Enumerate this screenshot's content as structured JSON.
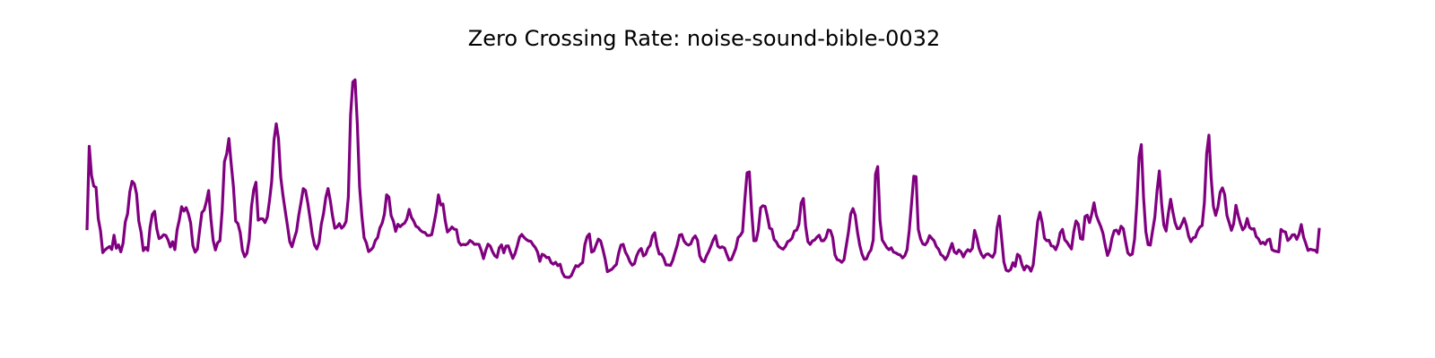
{
  "chart_data": {
    "type": "line",
    "title": "Zero Crossing Rate: noise-sound-bible-0032",
    "xlabel": "",
    "ylabel": "",
    "axes_visible": false,
    "grid": false,
    "ylim": [
      0.0,
      1.0
    ],
    "series": [
      {
        "color": "#800080",
        "values": [
          0.344,
          0.691,
          0.571,
          0.526,
          0.521,
          0.392,
          0.341,
          0.251,
          0.262,
          0.27,
          0.276,
          0.264,
          0.323,
          0.269,
          0.283,
          0.254,
          0.289,
          0.378,
          0.411,
          0.502,
          0.546,
          0.536,
          0.494,
          0.381,
          0.335,
          0.259,
          0.272,
          0.26,
          0.356,
          0.409,
          0.422,
          0.348,
          0.309,
          0.314,
          0.325,
          0.322,
          0.303,
          0.274,
          0.296,
          0.263,
          0.345,
          0.387,
          0.441,
          0.423,
          0.437,
          0.412,
          0.374,
          0.28,
          0.253,
          0.265,
          0.343,
          0.417,
          0.427,
          0.462,
          0.508,
          0.392,
          0.302,
          0.262,
          0.292,
          0.3,
          0.425,
          0.627,
          0.659,
          0.723,
          0.619,
          0.524,
          0.381,
          0.371,
          0.334,
          0.26,
          0.234,
          0.248,
          0.305,
          0.44,
          0.511,
          0.542,
          0.385,
          0.391,
          0.391,
          0.375,
          0.397,
          0.465,
          0.546,
          0.715,
          0.784,
          0.723,
          0.563,
          0.487,
          0.423,
          0.361,
          0.296,
          0.275,
          0.309,
          0.339,
          0.405,
          0.459,
          0.516,
          0.508,
          0.457,
          0.394,
          0.326,
          0.282,
          0.266,
          0.292,
          0.368,
          0.413,
          0.479,
          0.516,
          0.466,
          0.402,
          0.352,
          0.357,
          0.371,
          0.352,
          0.361,
          0.38,
          0.48,
          0.82,
          0.957,
          0.966,
          0.782,
          0.523,
          0.403,
          0.313,
          0.291,
          0.255,
          0.262,
          0.273,
          0.301,
          0.313,
          0.353,
          0.372,
          0.409,
          0.49,
          0.481,
          0.404,
          0.381,
          0.339,
          0.368,
          0.358,
          0.367,
          0.373,
          0.391,
          0.43,
          0.397,
          0.382,
          0.36,
          0.355,
          0.343,
          0.336,
          0.334,
          0.322,
          0.322,
          0.325,
          0.37,
          0.42,
          0.49,
          0.448,
          0.452,
          0.384,
          0.336,
          0.345,
          0.357,
          0.348,
          0.346,
          0.295,
          0.282,
          0.285,
          0.283,
          0.288,
          0.301,
          0.295,
          0.285,
          0.286,
          0.285,
          0.26,
          0.226,
          0.26,
          0.286,
          0.278,
          0.255,
          0.238,
          0.231,
          0.271,
          0.283,
          0.25,
          0.278,
          0.279,
          0.252,
          0.227,
          0.247,
          0.279,
          0.315,
          0.326,
          0.314,
          0.305,
          0.299,
          0.298,
          0.283,
          0.272,
          0.253,
          0.215,
          0.244,
          0.24,
          0.23,
          0.231,
          0.21,
          0.203,
          0.211,
          0.197,
          0.203,
          0.168,
          0.151,
          0.149,
          0.148,
          0.156,
          0.178,
          0.197,
          0.193,
          0.203,
          0.21,
          0.284,
          0.317,
          0.328,
          0.253,
          0.258,
          0.283,
          0.307,
          0.299,
          0.264,
          0.224,
          0.172,
          0.177,
          0.182,
          0.193,
          0.202,
          0.249,
          0.282,
          0.285,
          0.253,
          0.236,
          0.213,
          0.199,
          0.205,
          0.238,
          0.258,
          0.268,
          0.237,
          0.244,
          0.269,
          0.281,
          0.32,
          0.333,
          0.279,
          0.245,
          0.245,
          0.228,
          0.2,
          0.2,
          0.198,
          0.219,
          0.251,
          0.282,
          0.323,
          0.326,
          0.299,
          0.287,
          0.282,
          0.287,
          0.31,
          0.32,
          0.302,
          0.237,
          0.218,
          0.213,
          0.238,
          0.256,
          0.279,
          0.304,
          0.321,
          0.278,
          0.271,
          0.275,
          0.27,
          0.244,
          0.22,
          0.222,
          0.245,
          0.269,
          0.313,
          0.322,
          0.337,
          0.47,
          0.581,
          0.585,
          0.426,
          0.3,
          0.301,
          0.344,
          0.436,
          0.445,
          0.442,
          0.401,
          0.352,
          0.348,
          0.305,
          0.295,
          0.277,
          0.27,
          0.265,
          0.276,
          0.296,
          0.301,
          0.311,
          0.34,
          0.344,
          0.368,
          0.456,
          0.475,
          0.36,
          0.296,
          0.285,
          0.299,
          0.303,
          0.315,
          0.323,
          0.3,
          0.3,
          0.313,
          0.345,
          0.342,
          0.314,
          0.242,
          0.222,
          0.219,
          0.211,
          0.221,
          0.278,
          0.336,
          0.411,
          0.433,
          0.406,
          0.336,
          0.282,
          0.245,
          0.223,
          0.225,
          0.248,
          0.262,
          0.303,
          0.575,
          0.607,
          0.384,
          0.303,
          0.288,
          0.272,
          0.263,
          0.271,
          0.253,
          0.25,
          0.244,
          0.241,
          0.229,
          0.238,
          0.262,
          0.344,
          0.454,
          0.567,
          0.565,
          0.347,
          0.308,
          0.287,
          0.283,
          0.295,
          0.321,
          0.31,
          0.3,
          0.276,
          0.265,
          0.243,
          0.236,
          0.222,
          0.237,
          0.264,
          0.289,
          0.254,
          0.247,
          0.262,
          0.253,
          0.233,
          0.252,
          0.263,
          0.256,
          0.269,
          0.343,
          0.311,
          0.268,
          0.244,
          0.23,
          0.243,
          0.246,
          0.238,
          0.232,
          0.251,
          0.355,
          0.402,
          0.309,
          0.212,
          0.178,
          0.174,
          0.181,
          0.209,
          0.194,
          0.244,
          0.237,
          0.201,
          0.179,
          0.196,
          0.191,
          0.174,
          0.2,
          0.288,
          0.38,
          0.418,
          0.374,
          0.311,
          0.3,
          0.302,
          0.279,
          0.277,
          0.263,
          0.287,
          0.333,
          0.347,
          0.304,
          0.294,
          0.279,
          0.266,
          0.337,
          0.382,
          0.369,
          0.309,
          0.306,
          0.4,
          0.406,
          0.375,
          0.411,
          0.457,
          0.406,
          0.381,
          0.359,
          0.33,
          0.281,
          0.239,
          0.263,
          0.312,
          0.342,
          0.344,
          0.328,
          0.36,
          0.35,
          0.298,
          0.25,
          0.24,
          0.245,
          0.307,
          0.454,
          0.646,
          0.698,
          0.479,
          0.338,
          0.284,
          0.282,
          0.341,
          0.398,
          0.508,
          0.589,
          0.455,
          0.364,
          0.34,
          0.413,
          0.472,
          0.419,
          0.374,
          0.35,
          0.351,
          0.37,
          0.393,
          0.363,
          0.319,
          0.296,
          0.312,
          0.315,
          0.342,
          0.357,
          0.363,
          0.459,
          0.661,
          0.737,
          0.561,
          0.442,
          0.405,
          0.439,
          0.501,
          0.519,
          0.491,
          0.405,
          0.375,
          0.343,
          0.371,
          0.447,
          0.405,
          0.371,
          0.345,
          0.356,
          0.392,
          0.356,
          0.348,
          0.35,
          0.317,
          0.308,
          0.288,
          0.294,
          0.285,
          0.303,
          0.307,
          0.263,
          0.258,
          0.256,
          0.254,
          0.347,
          0.339,
          0.336,
          0.301,
          0.309,
          0.324,
          0.325,
          0.306,
          0.327,
          0.367,
          0.316,
          0.289,
          0.26,
          0.265,
          0.262,
          0.261,
          0.252,
          0.353
        ]
      }
    ]
  }
}
